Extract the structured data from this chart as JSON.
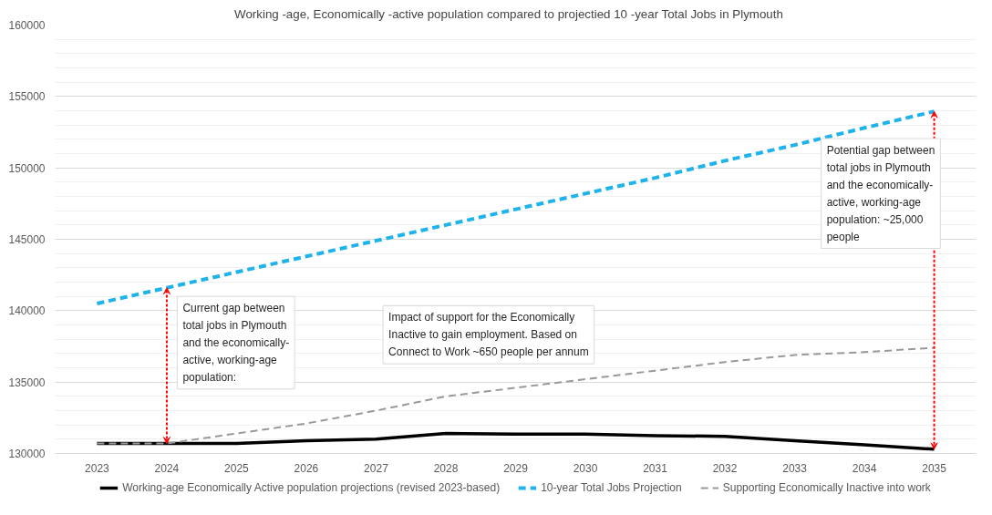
{
  "chart_data": {
    "type": "line",
    "title": "Working -age, Economically  -active population compared to projectied 10    -year Total Jobs in Plymouth",
    "categories": [
      "2023",
      "2024",
      "2025",
      "2026",
      "2027",
      "2028",
      "2029",
      "2030",
      "2031",
      "2032",
      "2033",
      "2034",
      "2035"
    ],
    "series": [
      {
        "name": "Working-age Economically Active population projections (revised 2023-based)",
        "color": "#000000",
        "line_style": "solid",
        "values": [
          130700,
          130700,
          130700,
          130900,
          131000,
          131400,
          131350,
          131350,
          131250,
          131200,
          130900,
          130600,
          130300
        ]
      },
      {
        "name": "10-year Total Jobs Projection",
        "color": "#1fb3ec",
        "line_style": "dashed",
        "values": [
          140500,
          141600,
          142700,
          143800,
          144900,
          146000,
          147100,
          148200,
          149300,
          150500,
          151600,
          152800,
          153950
        ]
      },
      {
        "name": "Supporting Economically Inactive into work",
        "color": "#999999",
        "line_style": "dashed",
        "values": [
          130700,
          130700,
          131400,
          132100,
          133000,
          134000,
          134600,
          135200,
          135800,
          136400,
          136900,
          137100,
          137400
        ]
      }
    ],
    "ylim": [
      130000,
      160000
    ],
    "yticks": [
      130000,
      135000,
      140000,
      145000,
      150000,
      155000,
      160000
    ],
    "grid": "y",
    "legend": "bottom",
    "marker": "none",
    "annotations": [
      {
        "text": "Current gap between total jobs in Plymouth and the economically-active, working-age population:",
        "x": "2024",
        "y": 141600
      },
      "Impact of support for the Economically Inactive to gain employment. Based on Connect to Work ~650 people per annum",
      {
        "text": "Potential gap between total jobs in Plymouth and the economically-active, working-age population: ~25,000 people",
        "x": "2035",
        "y": 153950
      }
    ]
  }
}
